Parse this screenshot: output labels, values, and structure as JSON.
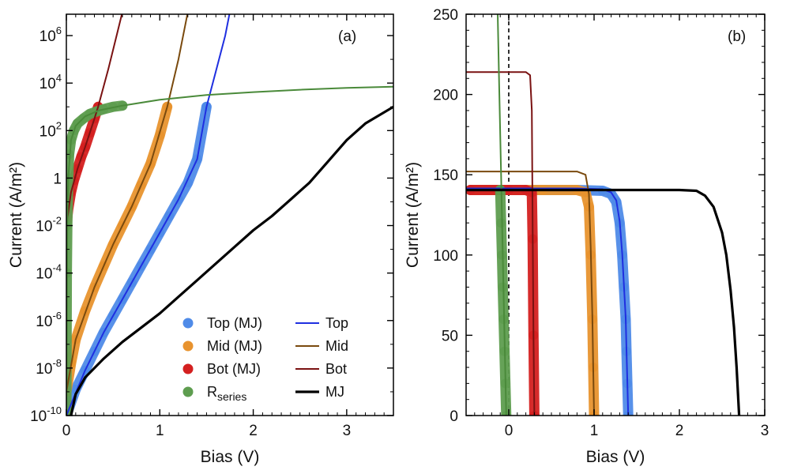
{
  "colors": {
    "top_mj": "#4f8be8",
    "mid_mj": "#e8932e",
    "bot_mj": "#d42020",
    "rseries": "#5e9d4f",
    "top_line": "#1f2fe0",
    "mid_line": "#7a4a0e",
    "bot_line": "#7a1212",
    "rseries_line": "#4a8a3a",
    "mj_line": "#000000"
  },
  "chart_data": [
    {
      "type": "line",
      "panel_label": "(a)",
      "xlabel": "Bias (V)",
      "ylabel": "Current (A/m²)",
      "xlim": [
        0,
        3.5
      ],
      "ylim_log10": [
        -10,
        6.9
      ],
      "yscale": "log",
      "xticks": [
        0,
        1,
        2,
        3
      ],
      "yticks": [
        {
          "exp": -10,
          "base": "10",
          "sup": "-10"
        },
        {
          "exp": -8,
          "base": "10",
          "sup": "-8"
        },
        {
          "exp": -6,
          "base": "10",
          "sup": "-6"
        },
        {
          "exp": -4,
          "base": "10",
          "sup": "-4"
        },
        {
          "exp": -2,
          "base": "10",
          "sup": "-2"
        },
        {
          "exp": 0,
          "base": "1",
          "sup": ""
        },
        {
          "exp": 2,
          "base": "10",
          "sup": "2"
        },
        {
          "exp": 4,
          "base": "10",
          "sup": "4"
        },
        {
          "exp": 6,
          "base": "10",
          "sup": "6"
        }
      ],
      "legend_position": "bottom-right",
      "legend": [
        {
          "label": "Top (MJ)",
          "kind": "marker",
          "color_key": "top_mj"
        },
        {
          "label": "Mid (MJ)",
          "kind": "marker",
          "color_key": "mid_mj"
        },
        {
          "label": "Bot (MJ)",
          "kind": "marker",
          "color_key": "bot_mj"
        },
        {
          "label": "R",
          "sub": "series",
          "kind": "marker",
          "color_key": "rseries"
        },
        {
          "label": "Top",
          "kind": "line",
          "color_key": "top_line"
        },
        {
          "label": "Mid",
          "kind": "line",
          "color_key": "mid_line"
        },
        {
          "label": "Bot",
          "kind": "line",
          "color_key": "bot_line"
        },
        {
          "label": "MJ",
          "kind": "line",
          "color_key": "mj_line"
        }
      ],
      "series": [
        {
          "name": "Top (MJ)",
          "style": "marker",
          "color_key": "top_mj",
          "x": [
            0.0,
            0.1,
            0.2,
            0.3,
            0.4,
            0.5,
            0.6,
            0.7,
            0.8,
            0.9,
            1.0,
            1.1,
            1.2,
            1.3,
            1.4,
            1.5
          ],
          "y_log10": [
            -10.0,
            -8.9,
            -8.1,
            -7.3,
            -6.5,
            -5.8,
            -5.1,
            -4.4,
            -3.7,
            -3.0,
            -2.3,
            -1.6,
            -0.9,
            -0.2,
            0.8,
            3.0
          ]
        },
        {
          "name": "Mid (MJ)",
          "style": "marker",
          "color_key": "mid_mj",
          "x": [
            0.0,
            0.05,
            0.1,
            0.2,
            0.3,
            0.4,
            0.5,
            0.6,
            0.7,
            0.8,
            0.9,
            1.0,
            1.08
          ],
          "y_log10": [
            -9.0,
            -7.8,
            -6.8,
            -5.6,
            -4.6,
            -3.7,
            -2.8,
            -2.0,
            -1.2,
            -0.3,
            0.6,
            1.8,
            3.0
          ]
        },
        {
          "name": "Bot (MJ)",
          "style": "marker",
          "color_key": "bot_mj",
          "x": [
            0.0,
            0.02,
            0.05,
            0.08,
            0.12,
            0.16,
            0.2,
            0.25,
            0.3,
            0.34
          ],
          "y_log10": [
            -2.0,
            -1.3,
            -0.6,
            -0.1,
            0.4,
            0.9,
            1.3,
            1.9,
            2.5,
            3.0
          ]
        },
        {
          "name": "R series",
          "style": "marker",
          "color_key": "rseries",
          "x": [
            0.0,
            0.005,
            0.01,
            0.02,
            0.03,
            0.05,
            0.08,
            0.12,
            0.18,
            0.25,
            0.32,
            0.4,
            0.5,
            0.6
          ],
          "y_log10": [
            -10.0,
            -4.0,
            -2.0,
            0.0,
            1.0,
            1.6,
            2.0,
            2.3,
            2.5,
            2.7,
            2.8,
            2.9,
            3.0,
            3.05
          ]
        },
        {
          "name": "Top",
          "style": "line",
          "color_key": "top_line",
          "x": [
            0.0,
            0.2,
            0.4,
            0.6,
            0.8,
            1.0,
            1.2,
            1.4,
            1.5,
            1.6,
            1.7,
            1.75
          ],
          "y_log10": [
            -10.0,
            -8.1,
            -6.5,
            -5.1,
            -3.7,
            -2.3,
            -0.9,
            0.8,
            3.0,
            4.5,
            6.0,
            7.0
          ]
        },
        {
          "name": "Mid",
          "style": "line",
          "color_key": "mid_line",
          "x": [
            0.0,
            0.1,
            0.3,
            0.5,
            0.7,
            0.9,
            1.08,
            1.2,
            1.3
          ],
          "y_log10": [
            -9.0,
            -6.8,
            -4.6,
            -2.8,
            -1.2,
            0.6,
            3.0,
            5.0,
            7.0
          ]
        },
        {
          "name": "Bot",
          "style": "line",
          "color_key": "bot_line",
          "x": [
            0.0,
            0.05,
            0.12,
            0.2,
            0.3,
            0.34,
            0.45,
            0.55,
            0.6
          ],
          "y_log10": [
            -2.0,
            -0.6,
            0.4,
            1.3,
            2.5,
            3.0,
            4.6,
            6.2,
            7.0
          ]
        },
        {
          "name": "R series",
          "style": "line",
          "color_key": "rseries_line",
          "x": [
            0.0,
            0.01,
            0.02,
            0.05,
            0.1,
            0.2,
            0.35,
            0.6,
            1.0,
            1.5,
            2.0,
            2.5,
            3.0,
            3.5
          ],
          "y_log10": [
            -10.0,
            -2.0,
            0.0,
            1.6,
            2.2,
            2.6,
            2.85,
            3.05,
            3.3,
            3.5,
            3.62,
            3.72,
            3.8,
            3.85
          ]
        },
        {
          "name": "MJ",
          "style": "line",
          "color_key": "mj_line",
          "x": [
            0.05,
            0.1,
            0.2,
            0.4,
            0.6,
            0.8,
            1.0,
            1.2,
            1.4,
            1.6,
            1.8,
            2.0,
            2.2,
            2.4,
            2.6,
            2.8,
            3.0,
            3.2,
            3.5
          ],
          "y_log10": [
            -10.0,
            -9.1,
            -8.4,
            -7.6,
            -6.9,
            -6.3,
            -5.7,
            -5.0,
            -4.3,
            -3.6,
            -2.9,
            -2.2,
            -1.6,
            -0.9,
            -0.2,
            0.7,
            1.6,
            2.3,
            3.0
          ]
        }
      ]
    },
    {
      "type": "line",
      "panel_label": "(b)",
      "xlabel": "Bias (V)",
      "ylabel": "Current (A/m²)",
      "xlim": [
        -0.5,
        3
      ],
      "ylim": [
        0,
        250
      ],
      "xticks": [
        0,
        1,
        2,
        3
      ],
      "yticks": [
        0,
        50,
        100,
        150,
        200,
        250
      ],
      "zero_line": {
        "x": 0,
        "style": "dashed"
      },
      "series": [
        {
          "name": "Top (MJ)",
          "style": "marker",
          "color_key": "top_mj",
          "x": [
            -0.45,
            0.0,
            0.4,
            0.8,
            1.1,
            1.2,
            1.26,
            1.3,
            1.33,
            1.35,
            1.37,
            1.38,
            1.39,
            1.4
          ],
          "y": [
            140.5,
            140.5,
            140.5,
            140.5,
            140,
            138,
            133,
            120,
            100,
            80,
            60,
            40,
            20,
            0
          ]
        },
        {
          "name": "Mid (MJ)",
          "style": "marker",
          "color_key": "mid_mj",
          "x": [
            -0.45,
            0.0,
            0.4,
            0.8,
            0.9,
            0.94,
            0.96,
            0.98,
            0.99,
            1.0
          ],
          "y": [
            140.5,
            140.5,
            140.5,
            140.5,
            139,
            130,
            100,
            60,
            30,
            0
          ]
        },
        {
          "name": "Bot (MJ)",
          "style": "marker",
          "color_key": "bot_mj",
          "x": [
            -0.45,
            0.0,
            0.2,
            0.27,
            0.28,
            0.29,
            0.3
          ],
          "y": [
            140.5,
            140.5,
            140.5,
            139,
            110,
            50,
            0
          ]
        },
        {
          "name": "R series",
          "style": "marker",
          "color_key": "rseries",
          "x": [
            -0.1,
            -0.09,
            -0.08,
            -0.07,
            -0.06,
            -0.05,
            -0.04,
            -0.03
          ],
          "y": [
            140.5,
            120,
            100,
            80,
            60,
            40,
            20,
            0
          ]
        },
        {
          "name": "Top",
          "style": "line",
          "color_key": "top_line",
          "x": [
            -0.5,
            0.0,
            0.8,
            1.1,
            1.2,
            1.26,
            1.3,
            1.33,
            1.35,
            1.37,
            1.38,
            1.39,
            1.4
          ],
          "y": [
            141.5,
            141.5,
            141.5,
            141,
            139,
            134,
            121,
            101,
            81,
            61,
            41,
            21,
            0
          ]
        },
        {
          "name": "Mid",
          "style": "line",
          "color_key": "mid_line",
          "x": [
            -0.5,
            0.0,
            0.8,
            0.9,
            0.94,
            0.96,
            0.98,
            0.99,
            1.0
          ],
          "y": [
            152,
            152,
            152,
            150,
            138,
            105,
            62,
            30,
            0
          ]
        },
        {
          "name": "Bot",
          "style": "line",
          "color_key": "bot_line",
          "x": [
            -0.5,
            0.0,
            0.2,
            0.25,
            0.27,
            0.28,
            0.29,
            0.3
          ],
          "y": [
            214,
            214,
            214,
            212,
            190,
            120,
            50,
            0
          ]
        },
        {
          "name": "R series",
          "style": "line",
          "color_key": "rseries_line",
          "x": [
            -0.13,
            -0.11,
            -0.09,
            -0.07,
            -0.05,
            -0.03
          ],
          "y": [
            250,
            200,
            150,
            100,
            50,
            0
          ]
        },
        {
          "name": "MJ",
          "style": "line",
          "color_key": "mj_line",
          "x": [
            -0.5,
            0.0,
            1.0,
            2.0,
            2.2,
            2.3,
            2.4,
            2.5,
            2.55,
            2.6,
            2.64,
            2.67,
            2.7
          ],
          "y": [
            140.5,
            140.5,
            140.5,
            140.5,
            140,
            137,
            130,
            114,
            100,
            78,
            55,
            30,
            0
          ]
        }
      ]
    }
  ]
}
